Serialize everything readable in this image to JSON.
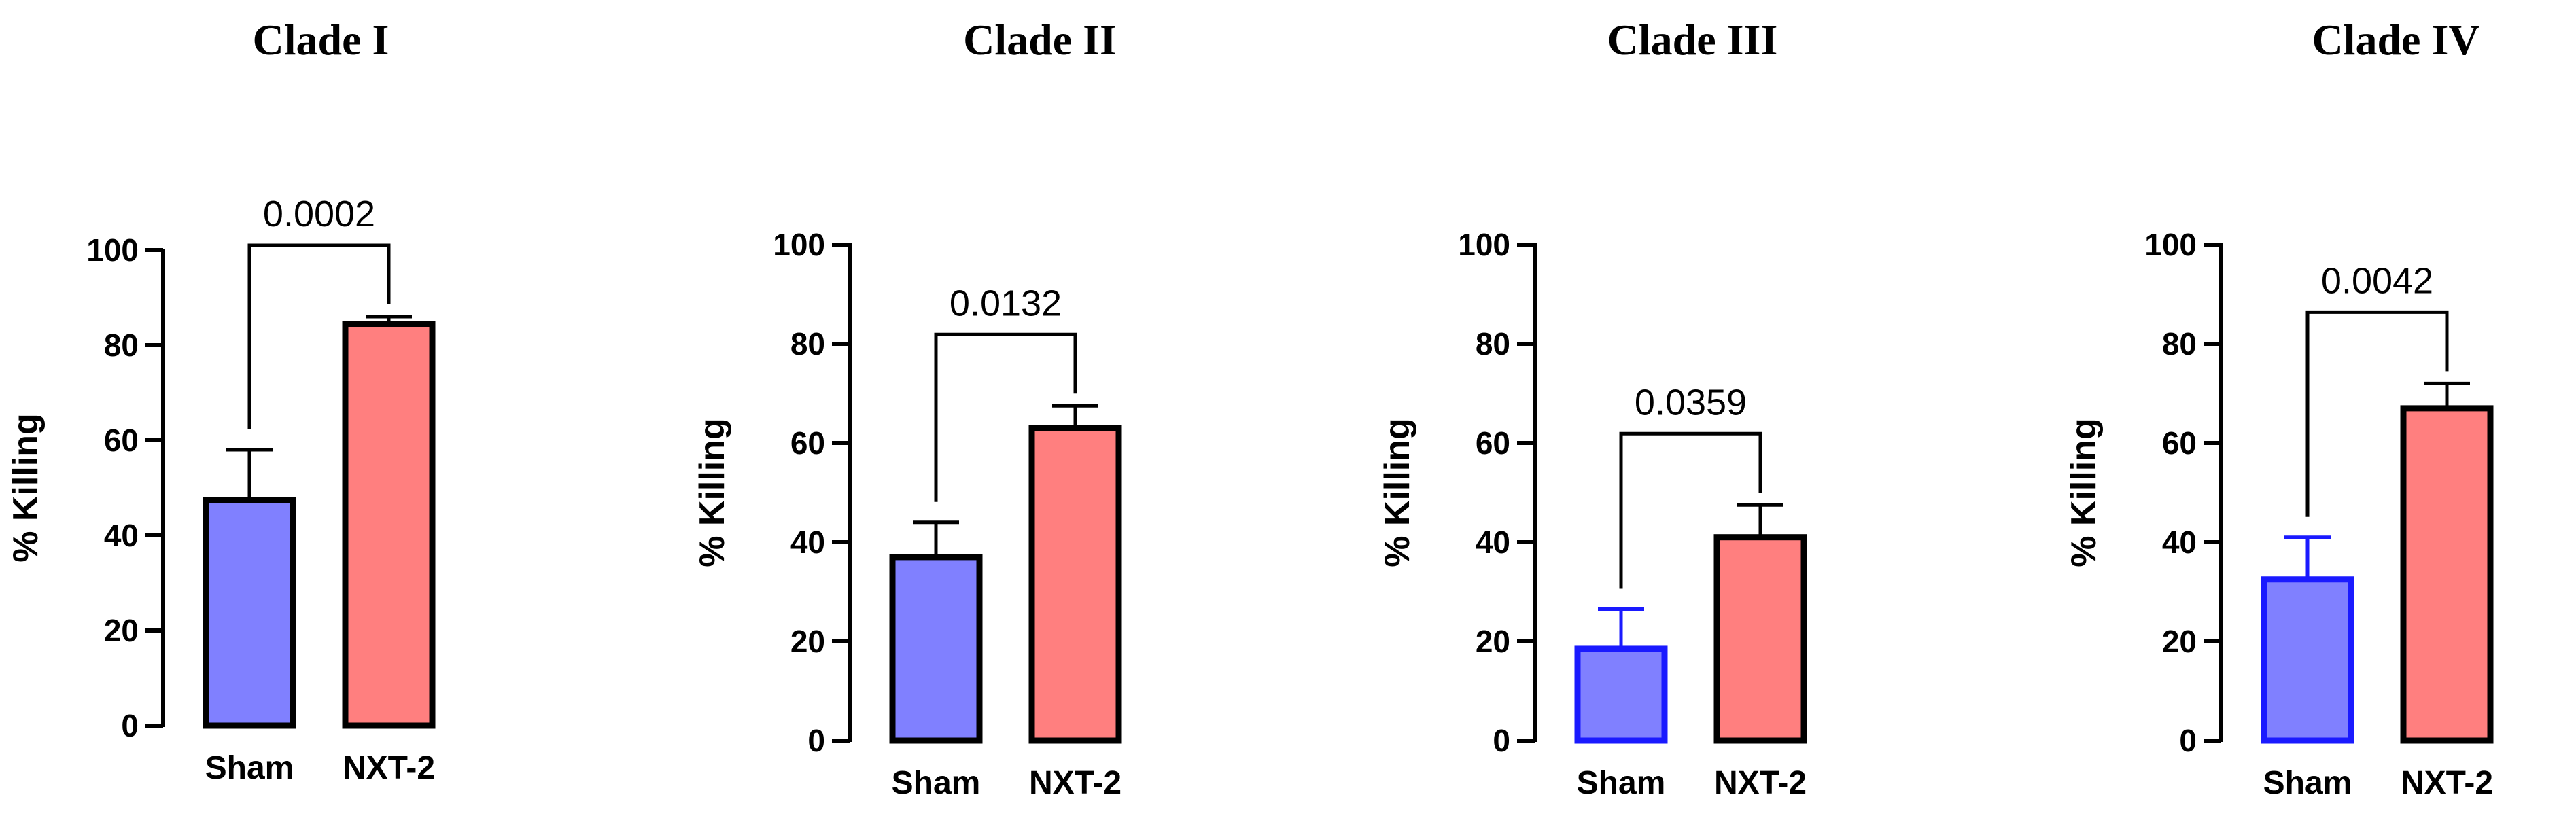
{
  "chart_data": [
    {
      "type": "bar",
      "title": "Clade I",
      "ylabel": "% Killing",
      "xlabel": "",
      "ylim": [
        0,
        100
      ],
      "yticks": [
        0,
        20,
        40,
        60,
        80,
        100
      ],
      "categories": [
        "Sham",
        "NXT-2"
      ],
      "values": [
        47.5,
        84.5
      ],
      "errors": [
        10.5,
        1.5
      ],
      "bar_colors": [
        "#8080ff",
        "#ff7f7f"
      ],
      "edge_colors": [
        "#000000",
        "#000000"
      ],
      "comparison": {
        "from": 0,
        "to": 1,
        "p_value": "0.0002"
      }
    },
    {
      "type": "bar",
      "title": "Clade II",
      "ylabel": "% Killing",
      "xlabel": "",
      "ylim": [
        0,
        100
      ],
      "yticks": [
        0,
        20,
        40,
        60,
        80,
        100
      ],
      "categories": [
        "Sham",
        "NXT-2"
      ],
      "values": [
        37,
        63
      ],
      "errors": [
        7,
        4.5
      ],
      "bar_colors": [
        "#8080ff",
        "#ff7f7f"
      ],
      "edge_colors": [
        "#000000",
        "#000000"
      ],
      "comparison": {
        "from": 0,
        "to": 1,
        "p_value": "0.0132"
      }
    },
    {
      "type": "bar",
      "title": "Clade III",
      "ylabel": "% Killing",
      "xlabel": "",
      "ylim": [
        0,
        100
      ],
      "yticks": [
        0,
        20,
        40,
        60,
        80,
        100
      ],
      "categories": [
        "Sham",
        "NXT-2"
      ],
      "values": [
        18.5,
        41
      ],
      "errors": [
        8,
        6.5
      ],
      "bar_colors": [
        "#8080ff",
        "#ff7f7f"
      ],
      "edge_colors": [
        "#1a1aff",
        "#000000"
      ],
      "comparison": {
        "from": 0,
        "to": 1,
        "p_value": "0.0359"
      }
    },
    {
      "type": "bar",
      "title": "Clade IV",
      "ylabel": "% Killing",
      "xlabel": "",
      "ylim": [
        0,
        100
      ],
      "yticks": [
        0,
        20,
        40,
        60,
        80,
        100
      ],
      "categories": [
        "Sham",
        "NXT-2"
      ],
      "values": [
        32.5,
        67
      ],
      "errors": [
        8.5,
        5
      ],
      "bar_colors": [
        "#8080ff",
        "#ff7f7f"
      ],
      "edge_colors": [
        "#1a1aff",
        "#000000"
      ],
      "comparison": {
        "from": 0,
        "to": 1,
        "p_value": "0.0042"
      }
    }
  ]
}
